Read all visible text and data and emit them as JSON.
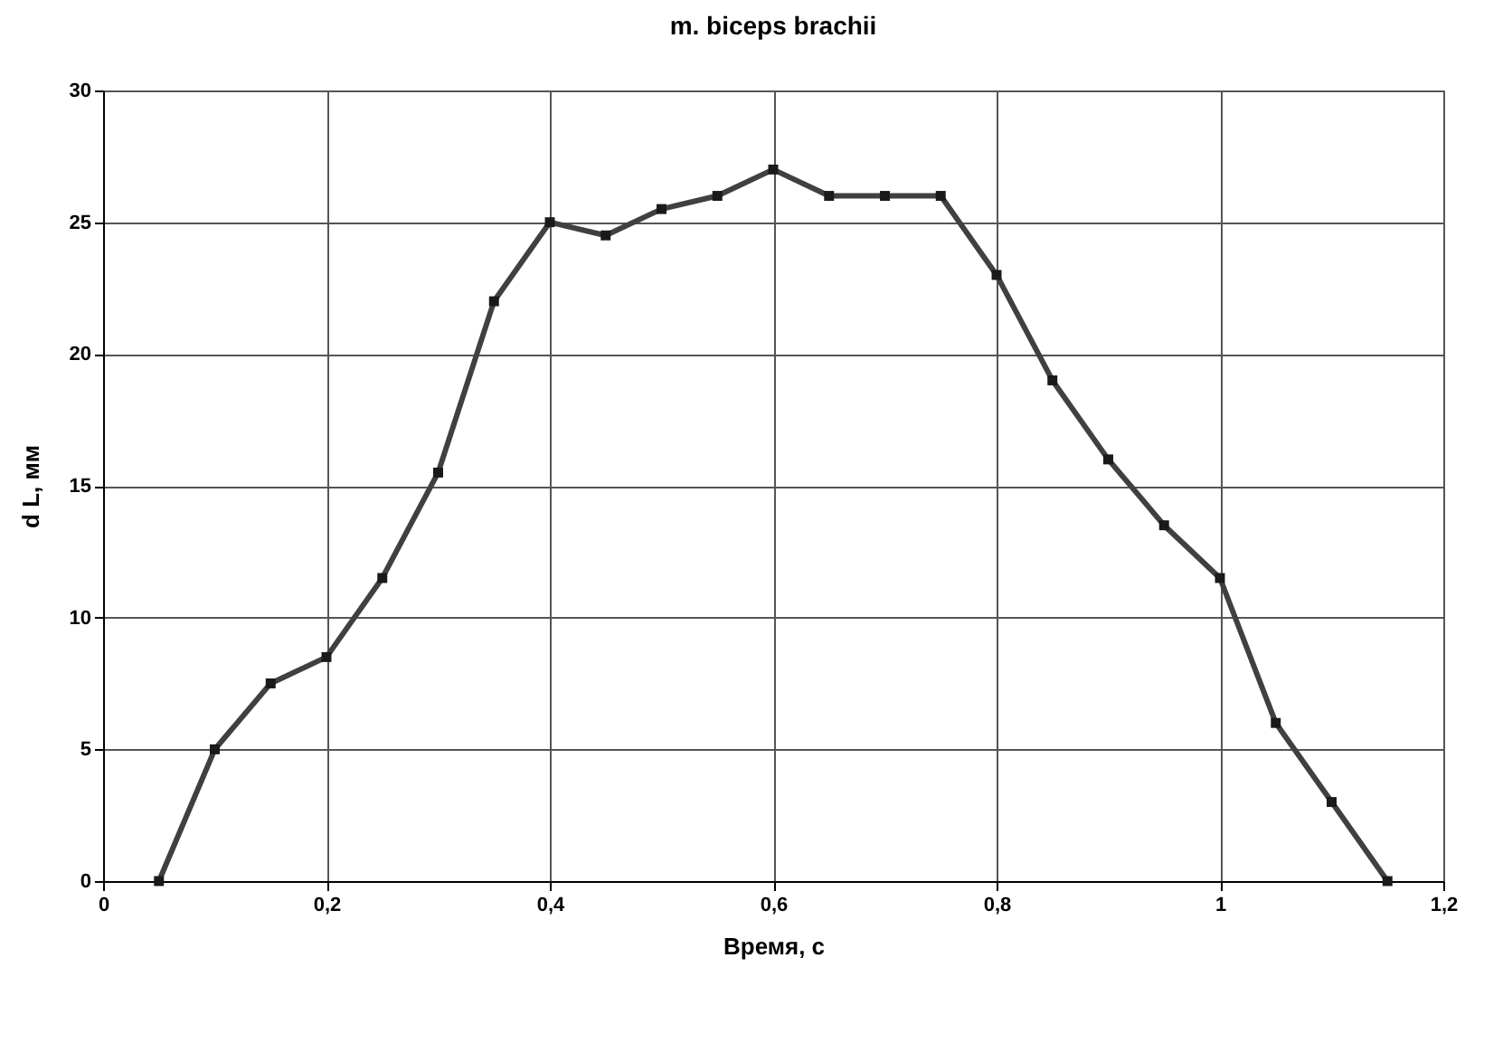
{
  "chart_data": {
    "type": "line",
    "title": "m. biceps brachii",
    "xlabel": "Время, с",
    "ylabel": "d L, мм",
    "x": [
      0.05,
      0.1,
      0.15,
      0.2,
      0.25,
      0.3,
      0.35,
      0.4,
      0.45,
      0.5,
      0.55,
      0.6,
      0.65,
      0.7,
      0.75,
      0.8,
      0.85,
      0.9,
      0.95,
      1.0,
      1.05,
      1.1,
      1.15
    ],
    "series": [
      {
        "color": "#404040",
        "values": [
          0,
          5,
          7.5,
          8.5,
          11.5,
          15.5,
          22,
          25,
          24.5,
          25.5,
          26,
          27,
          26,
          26,
          26,
          23,
          19,
          16,
          13.5,
          11.5,
          6,
          3,
          0
        ]
      }
    ],
    "xlim": [
      0,
      1.2
    ],
    "xticks": [
      0,
      {
        "value": 0.2,
        "label": "0,2"
      },
      {
        "value": 0.4,
        "label": "0,4"
      },
      {
        "value": 0.6,
        "label": "0,6"
      },
      {
        "value": 0.8,
        "label": "0,8"
      },
      1,
      {
        "value": 1.2,
        "label": "1,2"
      }
    ],
    "ylim": [
      0,
      30
    ],
    "yticks": [
      0,
      5,
      10,
      15,
      20,
      25,
      30
    ],
    "grid": true,
    "marker": "square",
    "line_style": "solid"
  }
}
